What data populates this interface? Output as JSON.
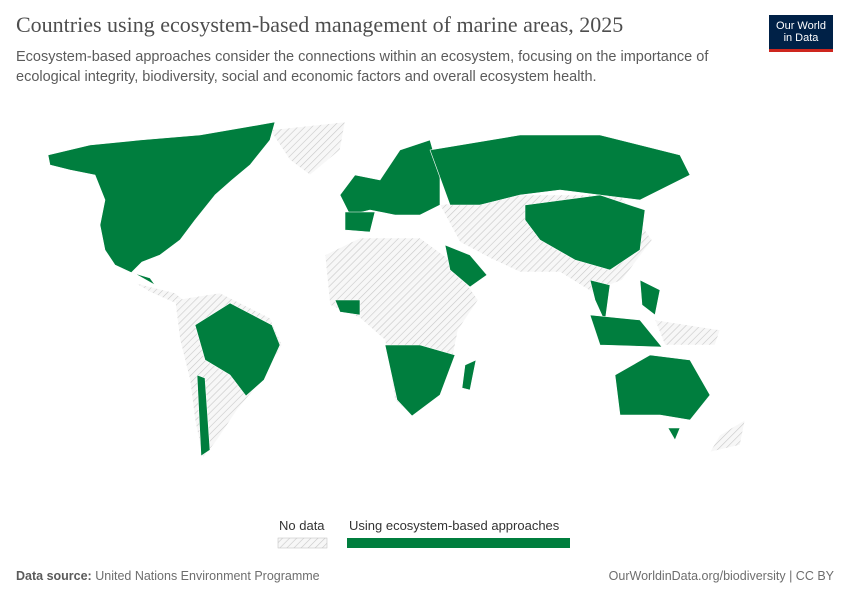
{
  "header": {
    "title": "Countries using ecosystem-based management of marine areas, 2025",
    "subtitle": "Ecosystem-based approaches consider the connections within an ecosystem, focusing on the importance of ecological integrity, biodiversity, social and economic factors and overall ecosystem health."
  },
  "logo": {
    "line1": "Our World",
    "line2": "in Data"
  },
  "legend": {
    "items": [
      {
        "label": "No data"
      },
      {
        "label": "Using ecosystem-based approaches"
      }
    ]
  },
  "footer": {
    "source_label": "Data source:",
    "source": "United Nations Environment Programme",
    "url": "OurWorldinData.org/biodiversity | CC BY"
  }
}
